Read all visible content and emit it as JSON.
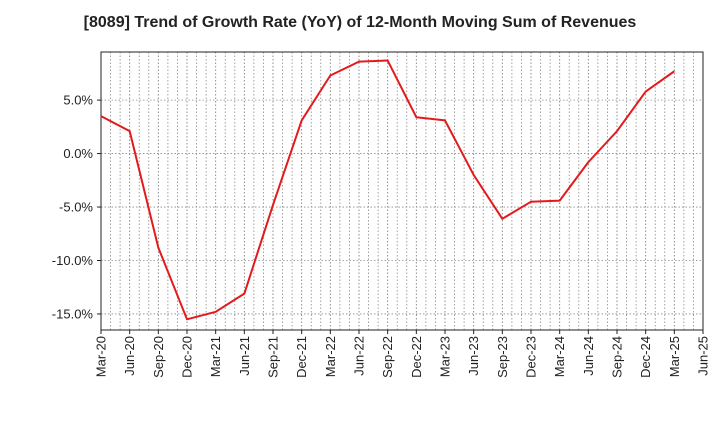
{
  "chart_data": {
    "type": "line",
    "title": "[8089]  Trend of Growth Rate (YoY) of 12-Month Moving Sum of Revenues",
    "xlabel": "",
    "ylabel": "",
    "x_ticks": [
      "Mar-20",
      "Jun-20",
      "Sep-20",
      "Dec-20",
      "Mar-21",
      "Jun-21",
      "Sep-21",
      "Dec-21",
      "Mar-22",
      "Jun-22",
      "Sep-22",
      "Dec-22",
      "Mar-23",
      "Jun-23",
      "Sep-23",
      "Dec-23",
      "Mar-24",
      "Jun-24",
      "Sep-24",
      "Dec-24",
      "Mar-25",
      "Jun-25"
    ],
    "y_ticks": [
      5,
      0,
      -5,
      -10,
      -15
    ],
    "y_tick_labels": [
      "5.0%",
      "0.0%",
      "-5.0%",
      "-10.0%",
      "-15.0%"
    ],
    "ylim": [
      -16.5,
      9.5
    ],
    "grid": true,
    "series": [
      {
        "color": "#e31a1c",
        "x": [
          "Mar-20",
          "Jun-20",
          "Sep-20",
          "Dec-20",
          "Mar-21",
          "Jun-21",
          "Sep-21",
          "Dec-21",
          "Mar-22",
          "Jun-22",
          "Sep-22",
          "Dec-22",
          "Mar-23",
          "Jun-23",
          "Sep-23",
          "Dec-23",
          "Mar-24",
          "Jun-24",
          "Sep-24",
          "Dec-24",
          "Mar-25"
        ],
        "values": [
          3.5,
          2.1,
          -8.8,
          -15.5,
          -14.8,
          -13.1,
          -4.8,
          3.1,
          7.3,
          8.6,
          8.7,
          3.4,
          3.1,
          -2.0,
          -6.1,
          -4.5,
          -4.4,
          -0.8,
          2.1,
          5.8,
          7.7
        ]
      }
    ]
  }
}
